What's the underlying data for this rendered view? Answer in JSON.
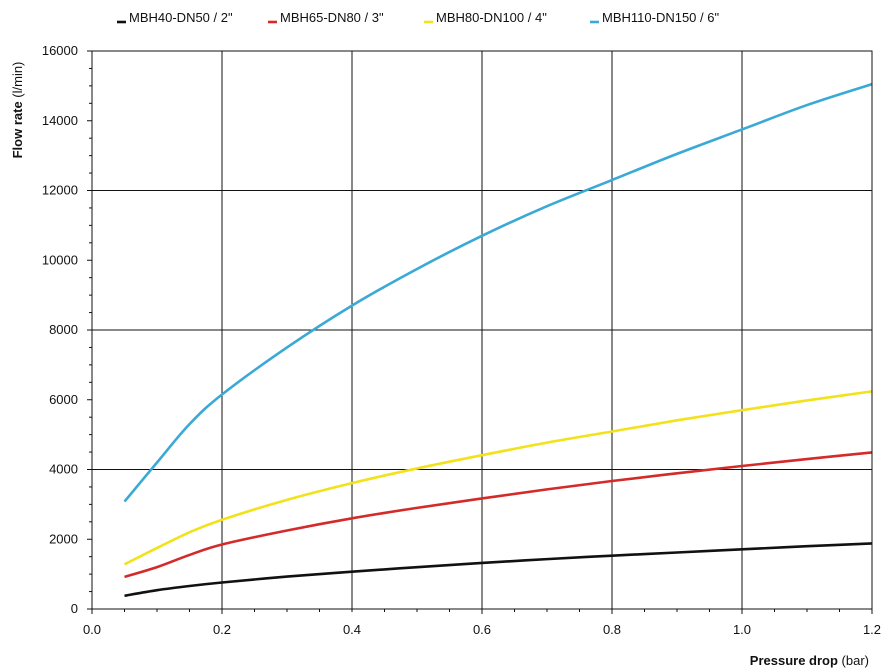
{
  "chart_data": {
    "type": "line",
    "xlabel_bold": "Pressure drop",
    "xlabel_unit": "(bar)",
    "ylabel_bold": "Flow rate",
    "ylabel_unit": "(l/min)",
    "xlim": [
      0,
      1.2
    ],
    "ylim": [
      0,
      16000
    ],
    "x_ticks": [
      0,
      0.2,
      0.4,
      0.6,
      0.8,
      1.0,
      1.2
    ],
    "x_tick_labels": [
      "0.0",
      "0.2",
      "0.4",
      "0.6",
      "0.8",
      "1.0",
      "1.2"
    ],
    "y_ticks": [
      0,
      2000,
      4000,
      6000,
      8000,
      10000,
      12000,
      14000,
      16000
    ],
    "y_tick_labels": [
      "0",
      "2000",
      "4000",
      "6000",
      "8000",
      "10000",
      "12000",
      "14000",
      "16000"
    ],
    "grid": true,
    "legend_position": "top",
    "series": [
      {
        "name": "MBH40-DN50 / 2\"",
        "color": "#111111",
        "x": [
          0.05,
          0.1,
          0.15,
          0.2,
          0.3,
          0.4,
          0.5,
          0.6,
          0.7,
          0.8,
          0.9,
          1.0,
          1.1,
          1.2
        ],
        "y": [
          380,
          540,
          660,
          760,
          930,
          1070,
          1200,
          1320,
          1430,
          1530,
          1620,
          1710,
          1800,
          1880
        ]
      },
      {
        "name": "MBH65-DN80 / 3\"",
        "color": "#d42a2a",
        "x": [
          0.05,
          0.1,
          0.15,
          0.2,
          0.3,
          0.4,
          0.5,
          0.6,
          0.7,
          0.8,
          0.9,
          1.0,
          1.1,
          1.2
        ],
        "y": [
          920,
          1200,
          1550,
          1850,
          2250,
          2600,
          2900,
          3170,
          3430,
          3670,
          3890,
          4100,
          4300,
          4490
        ]
      },
      {
        "name": "MBH80-DN100 / 4\"",
        "color": "#f2e21a",
        "x": [
          0.05,
          0.1,
          0.15,
          0.2,
          0.3,
          0.4,
          0.5,
          0.6,
          0.7,
          0.8,
          0.9,
          1.0,
          1.1,
          1.2
        ],
        "y": [
          1280,
          1750,
          2200,
          2560,
          3130,
          3610,
          4030,
          4410,
          4770,
          5090,
          5410,
          5700,
          5980,
          6240
        ]
      },
      {
        "name": "MBH110-DN150 / 6\"",
        "color": "#3aa9d6",
        "x": [
          0.05,
          0.1,
          0.15,
          0.2,
          0.3,
          0.4,
          0.5,
          0.6,
          0.7,
          0.8,
          0.9,
          1.0,
          1.1,
          1.2
        ],
        "y": [
          3080,
          4200,
          5300,
          6150,
          7500,
          8700,
          9750,
          10700,
          11550,
          12300,
          13050,
          13750,
          14450,
          15050
        ]
      }
    ]
  }
}
